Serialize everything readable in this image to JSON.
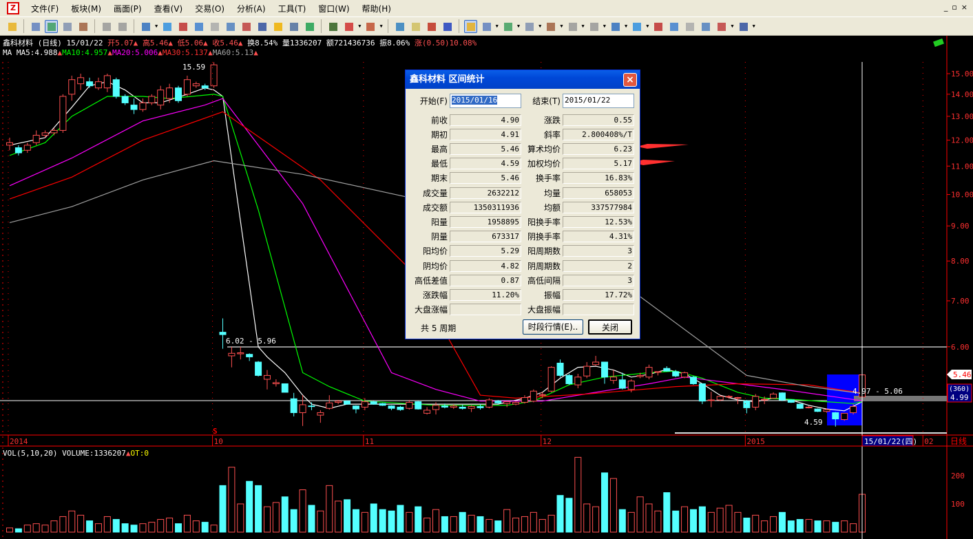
{
  "menu": {
    "items": [
      "文件(F)",
      "板块(M)",
      "画面(P)",
      "查看(V)",
      "交易(O)",
      "分析(A)",
      "工具(T)",
      "窗口(W)",
      "帮助(H)"
    ],
    "window_controls": [
      "_",
      "▫",
      "×"
    ]
  },
  "toolbar": {
    "icons": [
      "open-icon",
      "stock-list-icon",
      "chart-icon",
      "window-icon",
      "tools-icon",
      "undo-icon",
      "redo-icon",
      "switch-icon",
      "move-icon",
      "zoom-in-icon",
      "ruler-icon",
      "edit-icon",
      "copy-icon",
      "alert-chart-icon",
      "report-icon",
      "warning-icon",
      "f10-icon",
      "trend-icon",
      "kline-icon",
      "list-icon",
      "layout-icon",
      "monitor-icon",
      "scroll-icon",
      "updown-icon",
      "help-icon",
      "draw-pen-icon",
      "line-icon",
      "text-icon",
      "grid-icon",
      "fan-icon",
      "channel-icon",
      "fib-icon",
      "rect-icon",
      "circle-icon",
      "letter-icon",
      "copy-draw-icon",
      "eraser-icon",
      "lock-icon",
      "color-icon",
      "settings-icon"
    ]
  },
  "info": {
    "name": "鑫科材料",
    "period": "(日线)",
    "date": "15/01/22",
    "open": "开5.07",
    "high": "高5.46",
    "low": "低5.06",
    "close": "收5.46",
    "turnover": "换8.54%",
    "volume": "量1336207",
    "amount": "额721436736",
    "amplitude": "振8.06%",
    "change": "涨(0.50)10.08%"
  },
  "ma_info": {
    "label": "MA",
    "ma5": "MA5:4.988",
    "ma10": "MA10:4.957",
    "ma20": "MA20:5.006",
    "ma30": "MA30:5.137",
    "ma60": "MA60:5.13"
  },
  "vol_info": {
    "label": "VOL(5,10,20)",
    "volume": "VOLUME:1336207",
    "ot": "OT:0"
  },
  "colors": {
    "up": "#ff5050",
    "down": "#54ffff",
    "ma5": "#ffffff",
    "ma10": "#00ff00",
    "ma20": "#ff00ff",
    "ma30": "#ff0000",
    "ma60": "#a0a0a0",
    "axis": "#ff0000",
    "selection": "#0000ff"
  },
  "chart_data": {
    "type": "candlestick",
    "price_axis": {
      "scale": "log",
      "ticks": [
        "15.00",
        "14.00",
        "13.00",
        "12.00",
        "11.00",
        "10.00",
        "9.00",
        "8.00",
        "7.00",
        "6.00"
      ],
      "range": [
        4.4,
        15.6
      ]
    },
    "volume_axis": {
      "ticks": [
        "200",
        "100"
      ],
      "range": [
        0,
        300
      ]
    },
    "time_labels": [
      {
        "label": "2014",
        "index": 0
      },
      {
        "label": "10",
        "index": 23
      },
      {
        "label": "11",
        "index": 40
      },
      {
        "label": "12",
        "index": 60
      },
      {
        "label": "2015",
        "index": 83
      },
      {
        "label": "02",
        "index": 103
      }
    ],
    "cursor_date": "15/01/22(四)",
    "period_label": "日线",
    "last_price": "5.46",
    "cursor_price": {
      "count": "(360)",
      "price": "4.99"
    },
    "annotations": {
      "high": "15.59",
      "low": "4.59",
      "range1": "6.02 - 5.96",
      "range2": "4.97 - 5.06",
      "signal": "S"
    },
    "candles": [
      [
        11.8,
        12.1,
        11.6,
        11.9
      ],
      [
        11.7,
        11.8,
        11.4,
        11.5
      ],
      [
        11.6,
        11.9,
        11.5,
        11.8
      ],
      [
        11.9,
        12.4,
        11.8,
        12.2
      ],
      [
        12.2,
        12.4,
        12.1,
        12.3
      ],
      [
        12.3,
        12.5,
        12.2,
        12.4
      ],
      [
        12.4,
        14.0,
        12.3,
        13.9
      ],
      [
        14.0,
        14.9,
        13.7,
        14.7
      ],
      [
        14.5,
        15.0,
        14.2,
        14.8
      ],
      [
        14.6,
        14.8,
        14.3,
        14.4
      ],
      [
        14.3,
        14.8,
        14.2,
        14.6
      ],
      [
        14.3,
        15.0,
        14.1,
        14.9
      ],
      [
        14.7,
        14.8,
        13.8,
        13.9
      ],
      [
        13.9,
        14.0,
        13.5,
        13.6
      ],
      [
        13.5,
        13.8,
        13.1,
        13.3
      ],
      [
        13.3,
        13.8,
        13.2,
        13.6
      ],
      [
        13.6,
        14.0,
        13.5,
        13.9
      ],
      [
        13.5,
        14.4,
        13.3,
        14.2
      ],
      [
        13.8,
        14.5,
        13.6,
        14.3
      ],
      [
        14.3,
        14.4,
        13.6,
        13.7
      ],
      [
        14.0,
        14.9,
        13.9,
        14.7
      ],
      [
        14.4,
        14.6,
        14.3,
        14.5
      ],
      [
        14.4,
        14.5,
        14.2,
        14.3
      ],
      [
        14.4,
        15.59,
        14.3,
        15.45
      ],
      [
        6.3,
        6.6,
        5.96,
        6.25
      ],
      [
        5.82,
        6.0,
        5.6,
        5.87
      ],
      [
        5.86,
        6.0,
        5.75,
        5.88
      ],
      [
        5.85,
        5.87,
        5.72,
        5.8
      ],
      [
        5.7,
        5.72,
        5.43,
        5.45
      ],
      [
        5.38,
        5.55,
        5.2,
        5.45
      ],
      [
        5.3,
        5.38,
        5.25,
        5.32
      ],
      [
        5.3,
        5.3,
        5.15,
        5.15
      ],
      [
        5.04,
        5.14,
        4.75,
        4.81
      ],
      [
        4.81,
        5.1,
        4.6,
        4.94
      ],
      [
        4.92,
        4.98,
        4.85,
        4.91
      ],
      [
        4.77,
        4.85,
        4.65,
        4.81
      ],
      [
        4.88,
        5.1,
        4.86,
        4.97
      ],
      [
        4.98,
        5.02,
        4.95,
        5.0
      ],
      [
        5.0,
        5.01,
        4.94,
        4.95
      ],
      [
        4.92,
        4.93,
        4.8,
        4.87
      ],
      [
        4.9,
        5.05,
        4.85,
        4.99
      ],
      [
        4.99,
        5.0,
        4.94,
        4.95
      ],
      [
        4.96,
        4.97,
        4.92,
        4.93
      ],
      [
        4.92,
        4.93,
        4.85,
        4.88
      ],
      [
        4.9,
        4.92,
        4.84,
        4.86
      ],
      [
        4.88,
        5.02,
        4.86,
        4.98
      ],
      [
        4.99,
        5.0,
        4.86,
        4.87
      ],
      [
        4.8,
        4.9,
        4.78,
        4.85
      ],
      [
        4.86,
        4.98,
        4.78,
        4.93
      ],
      [
        4.92,
        4.96,
        4.88,
        4.9
      ],
      [
        4.9,
        4.95,
        4.87,
        4.92
      ],
      [
        4.9,
        4.94,
        4.86,
        4.88
      ],
      [
        4.88,
        4.93,
        4.82,
        4.91
      ],
      [
        4.91,
        4.95,
        4.86,
        4.89
      ],
      [
        4.9,
        5.05,
        4.88,
        5.02
      ],
      [
        5.0,
        5.02,
        4.95,
        4.97
      ],
      [
        4.96,
        5.0,
        4.9,
        4.99
      ],
      [
        4.95,
        5.0,
        4.93,
        4.98
      ],
      [
        4.98,
        5.1,
        4.96,
        5.06
      ],
      [
        5.0,
        5.2,
        4.98,
        5.17
      ],
      [
        5.1,
        5.15,
        5.05,
        5.11
      ],
      [
        5.17,
        5.62,
        5.15,
        5.6
      ],
      [
        5.68,
        5.75,
        5.42,
        5.45
      ],
      [
        5.45,
        5.48,
        5.28,
        5.3
      ],
      [
        5.28,
        5.48,
        5.22,
        5.42
      ],
      [
        5.44,
        5.7,
        5.4,
        5.62
      ],
      [
        5.65,
        5.82,
        5.63,
        5.7
      ],
      [
        5.7,
        5.7,
        5.3,
        5.42
      ],
      [
        5.36,
        5.55,
        5.3,
        5.42
      ],
      [
        5.37,
        5.5,
        5.2,
        5.22
      ],
      [
        5.2,
        5.38,
        5.15,
        5.35
      ],
      [
        5.43,
        5.5,
        5.4,
        5.45
      ],
      [
        5.42,
        5.65,
        5.38,
        5.6
      ],
      [
        5.52,
        5.52,
        5.45,
        5.52
      ],
      [
        5.58,
        5.62,
        5.52,
        5.53
      ],
      [
        5.52,
        5.55,
        5.42,
        5.44
      ],
      [
        5.42,
        5.52,
        5.4,
        5.5
      ],
      [
        5.42,
        5.44,
        5.28,
        5.3
      ],
      [
        5.3,
        5.3,
        4.95,
        5.0
      ],
      [
        5.02,
        5.16,
        4.9,
        5.02
      ],
      [
        5.02,
        5.1,
        5.0,
        5.08
      ],
      [
        5.08,
        5.1,
        5.04,
        5.08
      ],
      [
        5.06,
        5.07,
        4.95,
        5.06
      ],
      [
        5.0,
        5.02,
        4.8,
        4.89
      ],
      [
        4.9,
        5.12,
        4.85,
        5.08
      ],
      [
        5.03,
        5.08,
        4.95,
        5.03
      ],
      [
        5.05,
        5.15,
        5.04,
        5.12
      ],
      [
        5.14,
        5.15,
        5.0,
        5.02
      ],
      [
        5.02,
        5.03,
        4.97,
        4.98
      ],
      [
        4.95,
        4.96,
        4.87,
        4.88
      ],
      [
        4.9,
        4.92,
        4.88,
        4.9
      ],
      [
        4.87,
        4.88,
        4.82,
        4.83
      ],
      [
        4.83,
        4.88,
        4.81,
        4.86
      ],
      [
        4.81,
        4.82,
        4.59,
        4.71
      ],
      [
        4.7,
        4.8,
        4.68,
        4.8
      ],
      [
        4.81,
        4.95,
        4.78,
        4.91
      ],
      [
        5.07,
        5.46,
        5.06,
        5.46
      ]
    ],
    "volumes": [
      15,
      12,
      25,
      30,
      25,
      40,
      55,
      75,
      60,
      40,
      30,
      55,
      45,
      30,
      25,
      30,
      35,
      45,
      50,
      30,
      60,
      40,
      35,
      25,
      165,
      230,
      100,
      180,
      165,
      90,
      105,
      125,
      80,
      150,
      95,
      75,
      165,
      110,
      115,
      80,
      70,
      100,
      80,
      75,
      95,
      70,
      90,
      50,
      80,
      55,
      55,
      70,
      60,
      55,
      45,
      40,
      80,
      50,
      55,
      70,
      45,
      60,
      130,
      120,
      265,
      100,
      90,
      210,
      190,
      80,
      70,
      125,
      100,
      75,
      140,
      75,
      90,
      80,
      90,
      70,
      85,
      95,
      70,
      50,
      60,
      40,
      55,
      70,
      40,
      45,
      45,
      40,
      40,
      35,
      40,
      30,
      134
    ],
    "series": [
      {
        "name": "MA5",
        "color": "#ffffff",
        "points": [
          [
            0,
            11.8
          ],
          [
            4,
            12.1
          ],
          [
            7,
            13.4
          ],
          [
            9,
            14.4
          ],
          [
            11,
            14.6
          ],
          [
            13,
            14.2
          ],
          [
            15,
            13.6
          ],
          [
            17,
            13.6
          ],
          [
            20,
            14.0
          ],
          [
            22,
            14.3
          ],
          [
            23,
            14.2
          ],
          [
            24,
            13.9
          ],
          [
            28,
            6.0
          ],
          [
            29,
            5.8
          ],
          [
            31,
            5.5
          ],
          [
            33,
            5.1
          ],
          [
            34,
            4.95
          ],
          [
            36,
            4.88
          ],
          [
            38,
            4.95
          ],
          [
            45,
            4.95
          ],
          [
            55,
            4.95
          ],
          [
            58,
            5.05
          ],
          [
            60,
            5.15
          ],
          [
            62,
            5.4
          ],
          [
            64,
            5.6
          ],
          [
            66,
            5.62
          ],
          [
            68,
            5.55
          ],
          [
            70,
            5.42
          ],
          [
            72,
            5.47
          ],
          [
            74,
            5.56
          ],
          [
            76,
            5.48
          ],
          [
            78,
            5.3
          ],
          [
            80,
            5.1
          ],
          [
            82,
            5.02
          ],
          [
            84,
            4.99
          ],
          [
            86,
            5.05
          ],
          [
            88,
            5.02
          ],
          [
            90,
            4.93
          ],
          [
            92,
            4.87
          ],
          [
            94,
            4.84
          ],
          [
            96,
            4.99
          ]
        ]
      },
      {
        "name": "MA10",
        "color": "#00ff00",
        "points": [
          [
            0,
            11.4
          ],
          [
            4,
            11.9
          ],
          [
            7,
            13.0
          ],
          [
            11,
            13.9
          ],
          [
            15,
            13.9
          ],
          [
            18,
            13.8
          ],
          [
            23,
            14.0
          ],
          [
            24,
            13.9
          ],
          [
            28,
            9.5
          ],
          [
            33,
            5.5
          ],
          [
            36,
            5.25
          ],
          [
            40,
            5.0
          ],
          [
            48,
            4.93
          ],
          [
            56,
            4.93
          ],
          [
            59,
            5.0
          ],
          [
            63,
            5.28
          ],
          [
            67,
            5.42
          ],
          [
            72,
            5.5
          ],
          [
            75,
            5.53
          ],
          [
            78,
            5.4
          ],
          [
            82,
            5.15
          ],
          [
            85,
            5.05
          ],
          [
            88,
            5.03
          ],
          [
            92,
            4.99
          ],
          [
            95,
            4.96
          ],
          [
            96,
            4.99
          ]
        ]
      },
      {
        "name": "MA20",
        "color": "#ff00ff",
        "points": [
          [
            0,
            10.3
          ],
          [
            7,
            11.3
          ],
          [
            15,
            12.8
          ],
          [
            22,
            13.5
          ],
          [
            24,
            13.8
          ],
          [
            33,
            9.7
          ],
          [
            43,
            5.5
          ],
          [
            48,
            5.2
          ],
          [
            53,
            5.0
          ],
          [
            60,
            5.0
          ],
          [
            66,
            5.15
          ],
          [
            72,
            5.3
          ],
          [
            76,
            5.42
          ],
          [
            82,
            5.3
          ],
          [
            88,
            5.18
          ],
          [
            96,
            5.006
          ]
        ]
      },
      {
        "name": "MA30",
        "color": "#ff0000",
        "points": [
          [
            0,
            9.85
          ],
          [
            7,
            10.6
          ],
          [
            15,
            12.0
          ],
          [
            24,
            13.2
          ],
          [
            35,
            10.5
          ],
          [
            45,
            7.8
          ],
          [
            53,
            5.1
          ],
          [
            57,
            5.05
          ],
          [
            65,
            5.12
          ],
          [
            75,
            5.25
          ],
          [
            82,
            5.3
          ],
          [
            90,
            5.28
          ],
          [
            96,
            5.137
          ]
        ]
      },
      {
        "name": "MA60",
        "color": "#a0a0a0",
        "points": [
          [
            0,
            9.1
          ],
          [
            7,
            9.6
          ],
          [
            15,
            10.5
          ],
          [
            23,
            11.2
          ],
          [
            33,
            10.7
          ],
          [
            45,
            9.9
          ],
          [
            71,
            7.1
          ],
          [
            83,
            5.45
          ],
          [
            90,
            5.25
          ],
          [
            96,
            5.13
          ]
        ]
      }
    ]
  },
  "dialog": {
    "title": "鑫科材料  区间统计",
    "close_icon": "×",
    "start_label": "开始(F)",
    "start_value": "2015/01/16",
    "end_label": "结束(T)",
    "end_value": "2015/01/22",
    "left": [
      {
        "label": "前收",
        "value": "4.90"
      },
      {
        "label": "期初",
        "value": "4.91"
      },
      {
        "label": "最高",
        "value": "5.46"
      },
      {
        "label": "最低",
        "value": "4.59"
      },
      {
        "label": "期末",
        "value": "5.46"
      },
      {
        "label": "成交量",
        "value": "2632212"
      },
      {
        "label": "成交额",
        "value": "1350311936"
      },
      {
        "label": "阳量",
        "value": "1958895"
      },
      {
        "label": "阴量",
        "value": "673317"
      },
      {
        "label": "阳均价",
        "value": "5.29"
      },
      {
        "label": "阴均价",
        "value": "4.82"
      },
      {
        "label": "高低差值",
        "value": "0.87"
      },
      {
        "label": "涨跌幅",
        "value": "11.20%"
      },
      {
        "label": "大盘涨幅",
        "value": ""
      }
    ],
    "right": [
      {
        "label": "涨跌",
        "value": "0.55"
      },
      {
        "label": "斜率",
        "value": "2.800408%/T"
      },
      {
        "label": "算术均价",
        "value": "6.23"
      },
      {
        "label": "加权均价",
        "value": "5.17"
      },
      {
        "label": "换手率",
        "value": "16.83%"
      },
      {
        "label": "均量",
        "value": "658053"
      },
      {
        "label": "均额",
        "value": "337577984"
      },
      {
        "label": "阳换手率",
        "value": "12.53%"
      },
      {
        "label": "阴换手率",
        "value": "4.31%"
      },
      {
        "label": "阳周期数",
        "value": "3"
      },
      {
        "label": "阴周期数",
        "value": "2"
      },
      {
        "label": "高低间隔",
        "value": "3"
      },
      {
        "label": "振幅",
        "value": "17.72%"
      },
      {
        "label": "大盘振幅",
        "value": ""
      }
    ],
    "period_count": "共 5 周期",
    "period_button": "时段行情(E)..",
    "close_button": "关闭"
  }
}
